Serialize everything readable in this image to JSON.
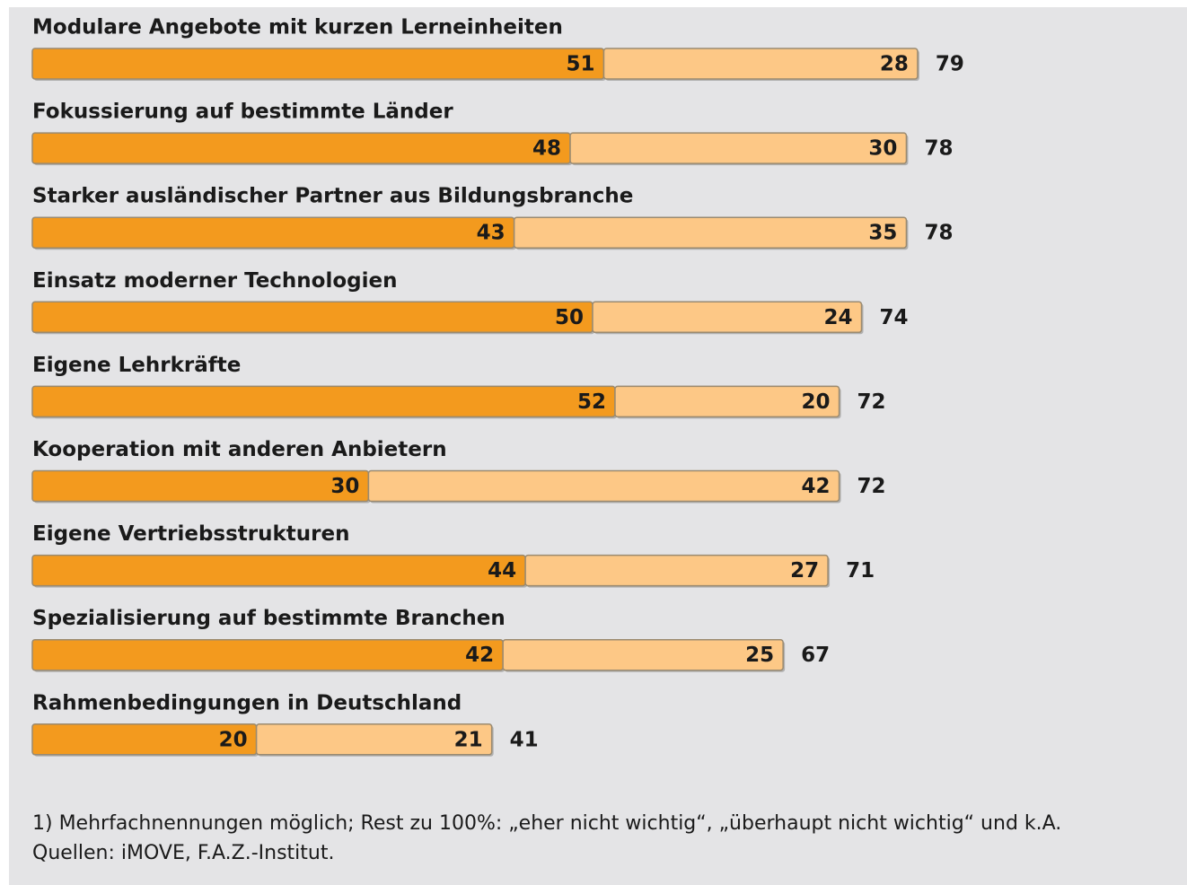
{
  "chart_data": {
    "type": "bar",
    "orientation": "horizontal",
    "stacked": true,
    "categories": [
      "Modulare Angebote mit kurzen Lerneinheiten",
      "Fokussierung auf bestimmte Länder",
      "Starker ausländischer Partner aus Bildungsbranche",
      "Einsatz moderner Technologien",
      "Eigene Lehrkräfte",
      "Kooperation mit anderen Anbietern",
      "Eigene Vertriebsstrukturen",
      "Spezialisierung auf bestimmte Branchen",
      "Rahmenbedingungen in Deutschland"
    ],
    "series": [
      {
        "color": "#f39a1e",
        "values": [
          51,
          48,
          43,
          50,
          52,
          30,
          44,
          42,
          20
        ]
      },
      {
        "color": "#fdc886",
        "values": [
          28,
          30,
          35,
          24,
          20,
          42,
          27,
          25,
          21
        ]
      }
    ],
    "totals": [
      79,
      78,
      78,
      74,
      72,
      72,
      71,
      67,
      41
    ],
    "xlim": [
      0,
      100
    ],
    "notes": [
      "1) Mehrfachnennungen möglich; Rest zu 100%: „eher nicht wichtig“, „überhaupt nicht wichtig“ und k.A.",
      "Quellen: iMOVE, F.A.Z.-Institut."
    ]
  }
}
